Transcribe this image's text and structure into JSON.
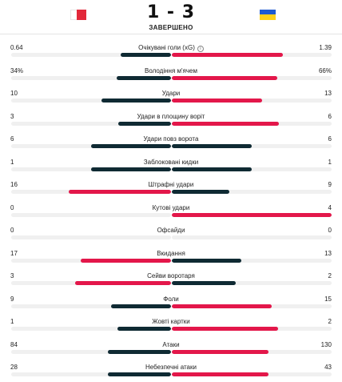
{
  "header": {
    "home_team_flag": "malta-flag",
    "away_team_flag": "ukraine-flag",
    "score": "1 - 3",
    "status": "ЗАВЕРШЕНО"
  },
  "colors": {
    "winner_bar": "#e3174a",
    "loser_bar": "#0f2a33",
    "track": "#f0f0f0"
  },
  "stats": [
    {
      "label": "Очікувані голи (xG)",
      "home": "0.64",
      "away": "1.39",
      "home_share": 0.315,
      "away_share": 0.695,
      "info": true
    },
    {
      "label": "Володіння м'ячем",
      "home": "34%",
      "away": "66%",
      "home_share": 0.34,
      "away_share": 0.66
    },
    {
      "label": "Удари",
      "home": "10",
      "away": "13",
      "home_share": 0.435,
      "away_share": 0.565
    },
    {
      "label": "Удари в площину воріт",
      "home": "3",
      "away": "6",
      "home_share": 0.33,
      "away_share": 0.67
    },
    {
      "label": "Удари повз ворота",
      "home": "6",
      "away": "6",
      "home_share": 0.5,
      "away_share": 0.5
    },
    {
      "label": "Заблоковані кидки",
      "home": "1",
      "away": "1",
      "home_share": 0.5,
      "away_share": 0.5
    },
    {
      "label": "Штрафні удари",
      "home": "16",
      "away": "9",
      "home_share": 0.64,
      "away_share": 0.36
    },
    {
      "label": "Кутові удари",
      "home": "0",
      "away": "4",
      "home_share": 0.0,
      "away_share": 1.0
    },
    {
      "label": "Офсайди",
      "home": "0",
      "away": "0",
      "home_share": 0.0,
      "away_share": 0.0
    },
    {
      "label": "Вкидання",
      "home": "17",
      "away": "13",
      "home_share": 0.567,
      "away_share": 0.433
    },
    {
      "label": "Сейви воротаря",
      "home": "3",
      "away": "2",
      "home_share": 0.6,
      "away_share": 0.4
    },
    {
      "label": "Фоли",
      "home": "9",
      "away": "15",
      "home_share": 0.375,
      "away_share": 0.625
    },
    {
      "label": "Жовті картки",
      "home": "1",
      "away": "2",
      "home_share": 0.333,
      "away_share": 0.667
    },
    {
      "label": "Атаки",
      "home": "84",
      "away": "130",
      "home_share": 0.393,
      "away_share": 0.607
    },
    {
      "label": "Небезпечні атаки",
      "home": "28",
      "away": "43",
      "home_share": 0.394,
      "away_share": 0.606
    }
  ]
}
